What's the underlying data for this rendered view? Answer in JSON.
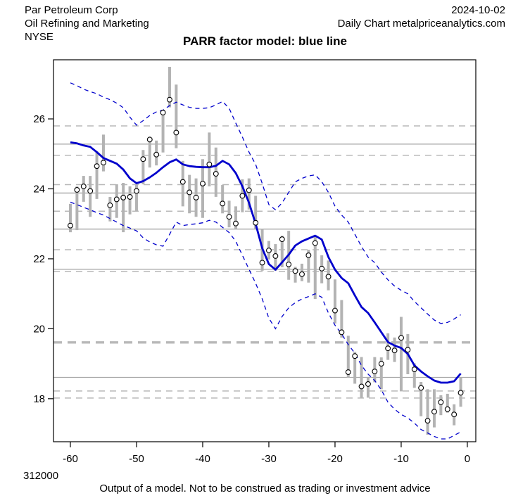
{
  "header": {
    "company": "Par Petroleum Corp",
    "sector": "Oil Refining and Marketing",
    "exchange": "NYSE",
    "date": "2024-10-02",
    "chart_type": "Daily Chart metalpriceanalytics.com"
  },
  "title": "PARR factor model: blue line",
  "footer": {
    "left_value": "312000",
    "disclaimer": "Output of a model. Not to be construed as trading or investment advice"
  },
  "chart_data": {
    "type": "line",
    "title": "PARR factor model: blue line",
    "xlabel": "",
    "ylabel": "",
    "xlim": [
      -62.55,
      1.28
    ],
    "ylim": [
      16.77,
      27.69
    ],
    "x_ticks": [
      -60,
      -50,
      -40,
      -30,
      -20,
      -10,
      0
    ],
    "y_ticks": [
      18,
      20,
      22,
      24,
      26
    ],
    "grid": "custom horizontal support/resistance levels only",
    "legend_position": "none",
    "x": [
      -60,
      -59,
      -58,
      -57,
      -56,
      -55,
      -54,
      -53,
      -52,
      -51,
      -50,
      -49,
      -48,
      -47,
      -46,
      -45,
      -44,
      -43,
      -42,
      -41,
      -40,
      -39,
      -38,
      -37,
      -36,
      -35,
      -34,
      -33,
      -32,
      -31,
      -30,
      -29,
      -28,
      -27,
      -26,
      -25,
      -24,
      -23,
      -22,
      -21,
      -20,
      -19,
      -18,
      -17,
      -16,
      -15,
      -14,
      -13,
      -12,
      -11,
      -10,
      -9,
      -8,
      -7,
      -6,
      -5,
      -4,
      -3,
      -2,
      -1
    ],
    "series": [
      {
        "name": "daily-price-points",
        "type": "scatter-open-circles-with-error-bars",
        "values": [
          22.95,
          23.97,
          24.07,
          23.94,
          24.65,
          24.75,
          23.53,
          23.7,
          23.75,
          23.77,
          23.94,
          24.85,
          25.41,
          24.98,
          26.18,
          26.55,
          25.61,
          24.2,
          23.9,
          23.75,
          24.15,
          24.7,
          24.43,
          23.58,
          23.2,
          23.01,
          23.8,
          23.96,
          23.03,
          21.89,
          22.24,
          22.08,
          22.56,
          21.84,
          21.65,
          21.56,
          22.1,
          22.45,
          21.72,
          21.49,
          20.52,
          19.9,
          18.76,
          19.22,
          18.35,
          18.42,
          18.78,
          19.0,
          19.44,
          19.38,
          19.74,
          19.4,
          18.84,
          18.31,
          17.37,
          17.63,
          17.9,
          17.7,
          17.55,
          18.17
        ],
        "bar_low": [
          22.76,
          22.82,
          23.63,
          23.2,
          23.71,
          24.5,
          23.07,
          23.17,
          22.76,
          23.27,
          23.37,
          24.13,
          24.61,
          24.67,
          25.04,
          26.33,
          25.16,
          23.5,
          23.3,
          23.2,
          23.17,
          24.07,
          23.77,
          23.3,
          22.9,
          22.86,
          23.33,
          23.41,
          22.86,
          21.66,
          21.98,
          21.66,
          21.76,
          21.4,
          21.32,
          21.36,
          21.32,
          20.85,
          21.3,
          21.1,
          20.15,
          19.75,
          18.6,
          18.43,
          18.03,
          18.03,
          18.47,
          18.27,
          19.11,
          19.05,
          18.21,
          18.7,
          18.31,
          17.5,
          16.97,
          17.18,
          17.53,
          17.6,
          17.24,
          17.77
        ],
        "bar_high": [
          23.57,
          24.07,
          24.37,
          24.37,
          25.07,
          25.55,
          23.77,
          24.13,
          24.17,
          24.07,
          24.13,
          25.11,
          25.45,
          25.38,
          26.23,
          27.49,
          26.98,
          24.8,
          24.4,
          24.3,
          24.85,
          25.61,
          25.18,
          24.11,
          23.66,
          23.5,
          24.27,
          24.3,
          23.8,
          22.86,
          22.51,
          22.42,
          22.66,
          22.8,
          21.77,
          21.86,
          22.26,
          22.66,
          22.1,
          21.95,
          21.41,
          20.82,
          19.8,
          19.34,
          19.19,
          18.61,
          19.19,
          19.18,
          19.87,
          19.75,
          20.34,
          19.85,
          19.01,
          18.48,
          18.27,
          18.27,
          18.1,
          18.14,
          17.84,
          18.61
        ]
      },
      {
        "name": "factor-model-line",
        "type": "line-solid",
        "values": [
          25.33,
          25.3,
          25.24,
          25.2,
          25.05,
          24.88,
          24.8,
          24.72,
          24.55,
          24.3,
          24.16,
          24.22,
          24.33,
          24.46,
          24.62,
          24.76,
          24.84,
          24.7,
          24.65,
          24.63,
          24.62,
          24.62,
          24.66,
          24.8,
          24.7,
          24.45,
          24.07,
          23.6,
          23.0,
          22.3,
          21.85,
          21.69,
          21.9,
          22.12,
          22.38,
          22.5,
          22.58,
          22.66,
          22.55,
          22.05,
          21.69,
          21.45,
          21.3,
          20.95,
          20.62,
          20.45,
          20.18,
          19.9,
          19.62,
          19.52,
          19.45,
          19.28,
          18.95,
          18.78,
          18.64,
          18.52,
          18.46,
          18.46,
          18.5,
          18.72
        ]
      },
      {
        "name": "upper-band",
        "type": "line-dashed",
        "values": [
          27.03,
          26.95,
          26.85,
          26.78,
          26.72,
          26.62,
          26.55,
          26.45,
          26.32,
          26.05,
          25.82,
          25.95,
          26.1,
          26.2,
          26.25,
          26.38,
          26.48,
          26.4,
          26.33,
          26.3,
          26.3,
          26.32,
          26.4,
          26.5,
          26.3,
          25.88,
          25.48,
          25.05,
          24.7,
          24.15,
          23.55,
          23.4,
          23.6,
          23.9,
          24.2,
          24.3,
          24.37,
          24.4,
          24.2,
          23.9,
          23.5,
          23.25,
          23.05,
          22.7,
          22.35,
          22.05,
          21.89,
          21.62,
          21.4,
          21.22,
          21.1,
          21.0,
          20.78,
          20.6,
          20.42,
          20.25,
          20.15,
          20.18,
          20.28,
          20.4
        ]
      },
      {
        "name": "lower-band",
        "type": "line-dashed",
        "values": [
          23.62,
          23.55,
          23.47,
          23.4,
          23.32,
          23.25,
          23.15,
          23.05,
          22.95,
          22.88,
          22.8,
          22.6,
          22.48,
          22.4,
          22.36,
          22.7,
          23.05,
          22.95,
          22.98,
          23.0,
          23.03,
          23.1,
          23.05,
          22.9,
          22.75,
          22.5,
          22.1,
          21.7,
          21.3,
          20.85,
          20.3,
          20.0,
          20.35,
          20.6,
          20.75,
          20.85,
          20.92,
          21.0,
          20.9,
          20.45,
          20.1,
          19.85,
          19.55,
          19.3,
          18.95,
          18.7,
          18.52,
          18.25,
          17.9,
          17.7,
          17.55,
          17.45,
          17.3,
          17.12,
          17.02,
          16.92,
          16.85,
          16.85,
          16.95,
          17.05
        ]
      }
    ],
    "levels": {
      "solid": [
        25.28,
        23.88,
        22.85,
        21.7,
        18.61
      ],
      "dashed": [
        25.8,
        24.96,
        24.12,
        23.36,
        22.26,
        21.64,
        18.22,
        18.02
      ],
      "thick_dashed": [
        19.61
      ]
    },
    "colors": {
      "model_line": "#0000cc",
      "band_line": "#0000cc",
      "error_bar": "#b3b3b3",
      "point_stroke": "#000000",
      "level_solid": "#a6a6a6",
      "level_dashed": "#b8b8b8",
      "axis": "#000000",
      "background": "#ffffff"
    }
  }
}
